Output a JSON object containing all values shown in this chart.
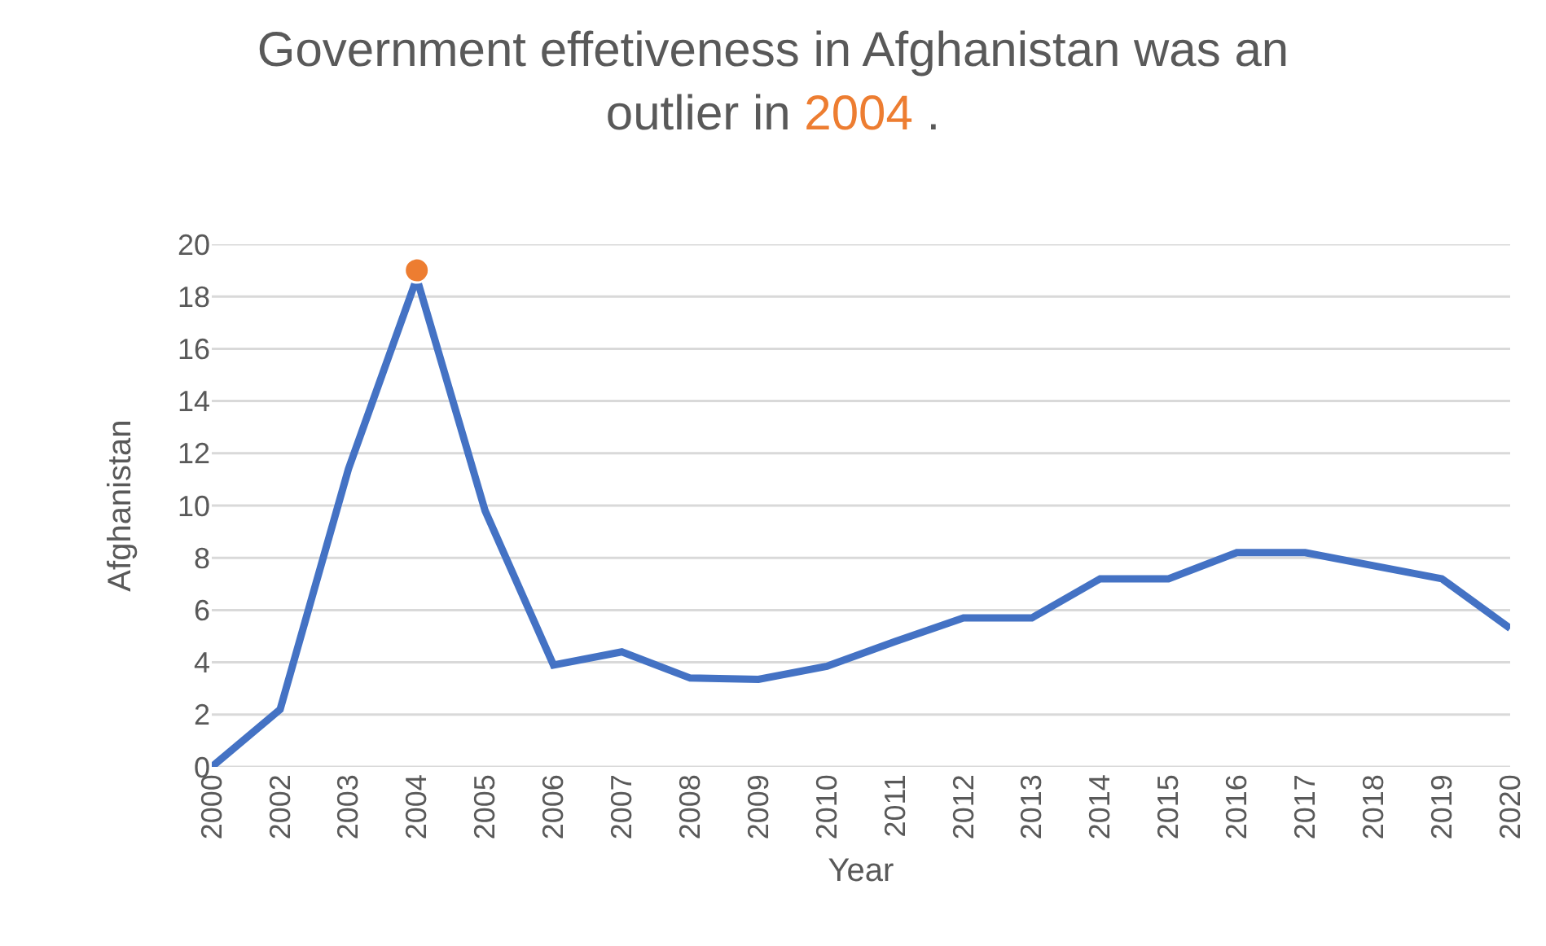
{
  "chart_data": {
    "type": "line",
    "title": "Government effetiveness in Afghanistan was an outlier in 2004 .",
    "xlabel": "Year",
    "ylabel": "Afghanistan",
    "categories": [
      "2000",
      "2002",
      "2003",
      "2004",
      "2005",
      "2006",
      "2007",
      "2008",
      "2009",
      "2010",
      "2011",
      "2012",
      "2013",
      "2014",
      "2015",
      "2016",
      "2017",
      "2018",
      "2019",
      "2020"
    ],
    "series": [
      {
        "color": "#4472c4",
        "values": [
          0,
          2.2,
          11.4,
          18.7,
          9.8,
          3.9,
          4.4,
          3.4,
          3.35,
          3.85,
          4.8,
          5.7,
          5.7,
          7.2,
          7.2,
          8.2,
          8.2,
          7.7,
          7.2,
          5.3
        ]
      },
      {
        "type": "scatter",
        "color": "#ed7d31",
        "values": [
          null,
          null,
          null,
          19,
          null,
          null,
          null,
          null,
          null,
          null,
          null,
          null,
          null,
          null,
          null,
          null,
          null,
          null,
          null,
          null
        ]
      }
    ],
    "ylim": [
      0,
      20
    ],
    "yticks": [
      0,
      2,
      4,
      6,
      8,
      10,
      12,
      14,
      16,
      18,
      20
    ],
    "grid": "y",
    "legend": false
  }
}
